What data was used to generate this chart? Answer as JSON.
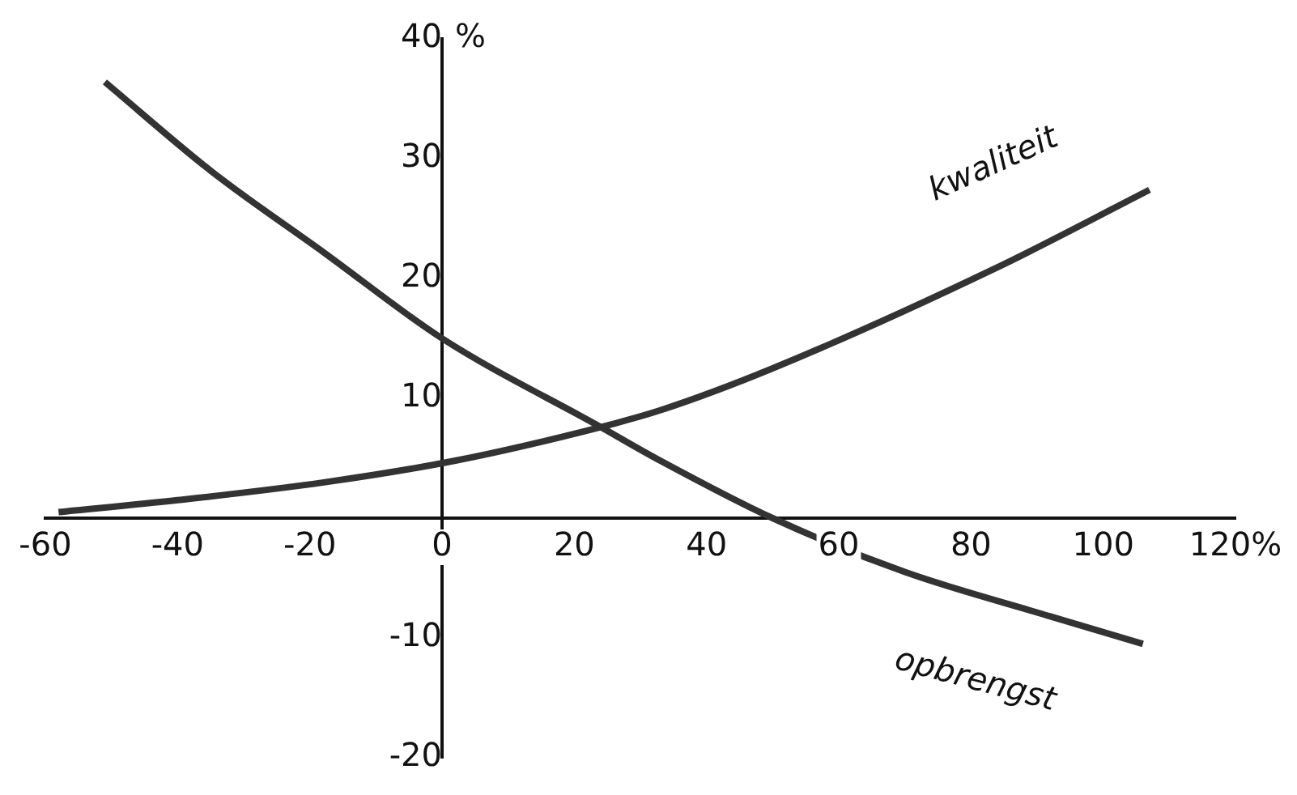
{
  "chart_data": {
    "type": "line",
    "ylabel": "%",
    "xlim": [
      -60,
      120
    ],
    "xticks": [
      -60,
      -40,
      -20,
      0,
      20,
      40,
      60,
      80,
      100,
      {
        "value": 120,
        "label": "120%"
      }
    ],
    "ylim": [
      -20,
      40
    ],
    "yticks": [
      -20,
      -10,
      10,
      20,
      30,
      40
    ],
    "grid": false,
    "legend": false,
    "marker": "none",
    "line_style": "solid",
    "series": [
      {
        "name": "kwaliteit",
        "color": "#333333",
        "x": [
          -58,
          -40,
          -17.7,
          2,
          24,
          33,
          50,
          83.5,
          107
        ],
        "values": [
          0.5,
          1.5,
          3.0,
          4.8,
          7.6,
          9,
          12.5,
          20.8,
          27.4
        ]
      },
      {
        "name": "opbrengst",
        "color": "#333333",
        "x": [
          -51,
          -35,
          -17.7,
          0,
          24,
          33,
          50,
          70,
          92,
          106
        ],
        "values": [
          36.4,
          29,
          22.1,
          15,
          7.6,
          4.8,
          0,
          -4.5,
          -8.2,
          -10.5
        ]
      }
    ]
  }
}
